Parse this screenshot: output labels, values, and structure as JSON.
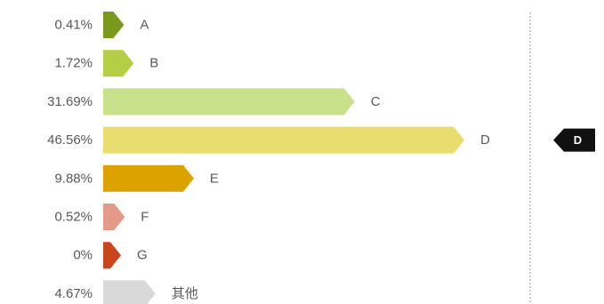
{
  "chart_data": {
    "type": "bar",
    "orientation": "horizontal",
    "categories": [
      "A",
      "B",
      "C",
      "D",
      "E",
      "F",
      "G",
      "其他"
    ],
    "values": [
      0.41,
      1.72,
      31.69,
      46.56,
      9.88,
      0.52,
      0,
      4.67
    ],
    "value_labels": [
      "0.41%",
      "1.72%",
      "31.69%",
      "46.56%",
      "9.88%",
      "0.52%",
      "0%",
      "4.67%"
    ],
    "colors": [
      "#7a9a1d",
      "#b4cf46",
      "#c8e08a",
      "#e8dd6e",
      "#dca200",
      "#e59988",
      "#c9461f",
      "#d9d9d9"
    ],
    "highlight": {
      "label": "D",
      "color": "#111111"
    },
    "xlim": [
      0,
      46.56
    ],
    "grid": false,
    "legend": "none"
  }
}
